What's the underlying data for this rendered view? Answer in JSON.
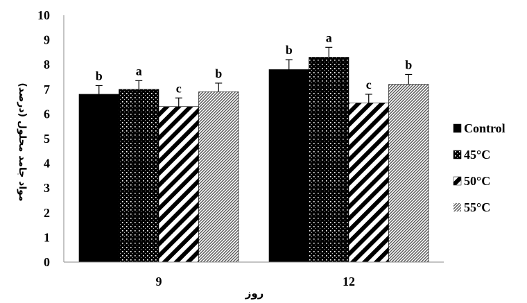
{
  "chart_data": {
    "type": "bar",
    "categories": [
      "9",
      "12"
    ],
    "series": [
      {
        "name": "Control",
        "values": [
          6.8,
          7.8
        ],
        "errors": [
          0.35,
          0.4
        ],
        "letters": [
          "b",
          "b"
        ],
        "pattern": "solid"
      },
      {
        "name": "45°C",
        "values": [
          7.0,
          8.3
        ],
        "errors": [
          0.35,
          0.4
        ],
        "letters": [
          "a",
          "a"
        ],
        "pattern": "dots"
      },
      {
        "name": "50°C",
        "values": [
          6.3,
          6.45
        ],
        "errors": [
          0.35,
          0.35
        ],
        "letters": [
          "c",
          "c"
        ],
        "pattern": "wide-diagonal"
      },
      {
        "name": "55°C",
        "values": [
          6.9,
          7.2
        ],
        "errors": [
          0.35,
          0.4
        ],
        "letters": [
          "b",
          "b"
        ],
        "pattern": "dense-diagonal"
      }
    ],
    "xlabel": "روز",
    "ylabel": "مواد جامد محلول (درصد)",
    "ylim": [
      0,
      10
    ],
    "yticks": [
      "0",
      "1",
      "2",
      "3",
      "4",
      "5",
      "6",
      "7",
      "8",
      "9",
      "10"
    ],
    "grid": false,
    "legend": "right"
  }
}
